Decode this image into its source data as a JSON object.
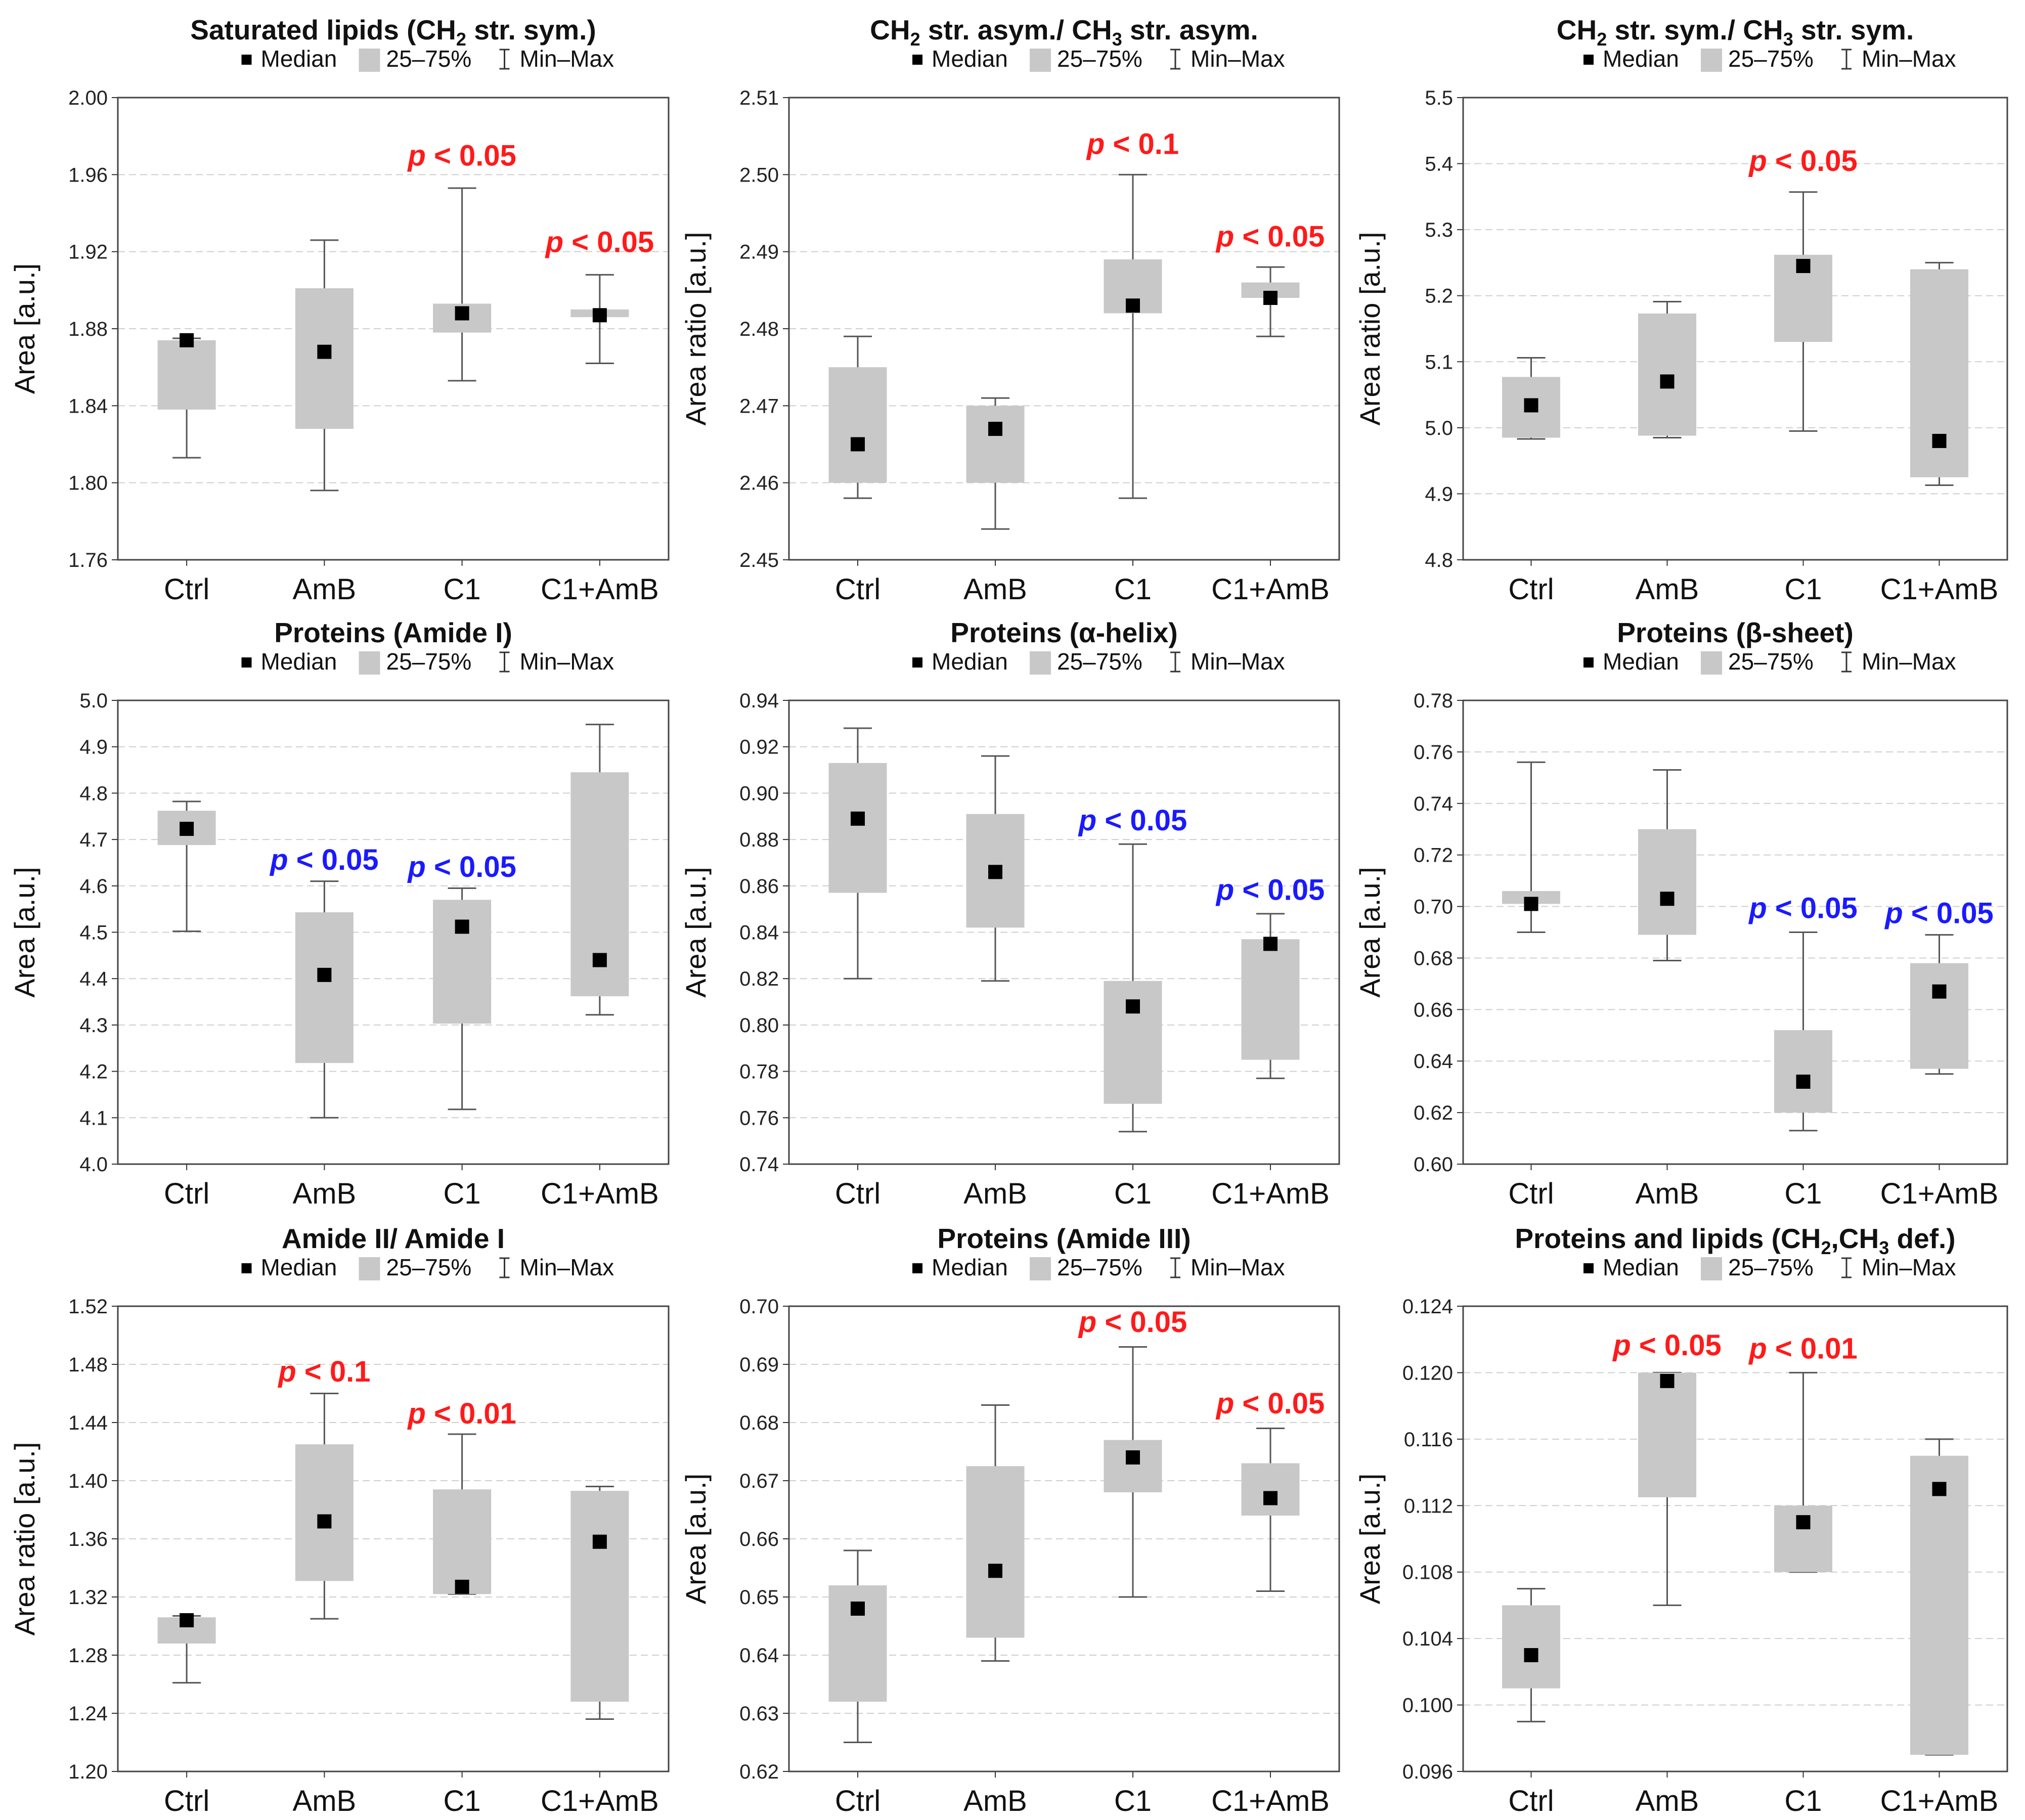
{
  "legend": {
    "median": "Median",
    "iqr": "25–75%",
    "range": "Min–Max"
  },
  "colors": {
    "box": "#c8c8c8",
    "median": "#000000",
    "whisker": "#555555",
    "grid": "#cfcfcf",
    "red": "#ff1a1a",
    "blue": "#1a1aff"
  },
  "chart_data": [
    {
      "type": "box",
      "title": "Saturated lipids (CH2 str. sym.)",
      "title_parts": [
        "Saturated lipids (CH",
        "2",
        " str. sym.)"
      ],
      "ylabel": "Area [a.u.]",
      "ylim": [
        1.76,
        2.0
      ],
      "yticks": [
        "1.76",
        "1.80",
        "1.84",
        "1.88",
        "1.92",
        "1.96",
        "2.00"
      ],
      "categories": [
        "Ctrl",
        "AmB",
        "C1",
        "C1+AmB"
      ],
      "min": [
        1.813,
        1.796,
        1.853,
        1.862
      ],
      "q1": [
        1.838,
        1.828,
        1.878,
        1.886
      ],
      "median": [
        1.874,
        1.868,
        1.888,
        1.887
      ],
      "q3": [
        1.874,
        1.901,
        1.893,
        1.89
      ],
      "max": [
        1.875,
        1.926,
        1.953,
        1.908
      ],
      "annotations": [
        {
          "i": 2,
          "text": "< 0.05",
          "color": "red",
          "value": 1.96
        },
        {
          "i": 3,
          "text": "< 0.05",
          "color": "red",
          "value": 1.915
        }
      ]
    },
    {
      "type": "box",
      "title": "CH2 str. asym./ CH3 str. asym.",
      "title_parts": [
        "CH",
        "2",
        " str. asym./ CH",
        "3",
        " str. asym."
      ],
      "ylabel": "Area ratio [a.u.]",
      "ylim": [
        2.45,
        2.51
      ],
      "yticks": [
        "2.45",
        "2.46",
        "2.47",
        "2.48",
        "2.49",
        "2.50",
        "2.51"
      ],
      "categories": [
        "Ctrl",
        "AmB",
        "C1",
        "C1+AmB"
      ],
      "min": [
        2.458,
        2.454,
        2.458,
        2.479
      ],
      "q1": [
        2.46,
        2.46,
        2.482,
        2.484
      ],
      "median": [
        2.465,
        2.467,
        2.483,
        2.484
      ],
      "q3": [
        2.475,
        2.47,
        2.489,
        2.486
      ],
      "max": [
        2.479,
        2.471,
        2.5,
        2.488
      ],
      "annotations": [
        {
          "i": 2,
          "text": "< 0.1",
          "color": "red",
          "value": 2.5015
        },
        {
          "i": 3,
          "text": "< 0.05",
          "color": "red",
          "value": 2.4895
        }
      ]
    },
    {
      "type": "box",
      "title": "CH2 str. sym./ CH3 str. sym.",
      "title_parts": [
        "CH",
        "2",
        " str. sym./ CH",
        "3",
        " str. sym."
      ],
      "ylabel": "Area ratio [a.u.]",
      "ylim": [
        4.8,
        5.5
      ],
      "yticks": [
        "4.8",
        "4.9",
        "5.0",
        "5.1",
        "5.2",
        "5.3",
        "5.4",
        "5.5"
      ],
      "categories": [
        "Ctrl",
        "AmB",
        "C1",
        "C1+AmB"
      ],
      "min": [
        4.983,
        4.985,
        4.995,
        4.913
      ],
      "q1": [
        4.985,
        4.988,
        5.13,
        4.925
      ],
      "median": [
        5.034,
        5.07,
        5.245,
        4.98
      ],
      "q3": [
        5.077,
        5.173,
        5.262,
        5.24
      ],
      "max": [
        5.106,
        5.191,
        5.357,
        5.25
      ],
      "annotations": [
        {
          "i": 2,
          "text": "< 0.05",
          "color": "red",
          "value": 5.375
        }
      ]
    },
    {
      "type": "box",
      "title": "Proteins (Amide I)",
      "title_parts": [
        "Proteins (Amide I)"
      ],
      "ylabel": "Area [a.u.]",
      "ylim": [
        4.0,
        5.0
      ],
      "yticks": [
        "4.0",
        "4.1",
        "4.2",
        "4.3",
        "4.4",
        "4.5",
        "4.6",
        "4.7",
        "4.8",
        "4.9",
        "5.0"
      ],
      "categories": [
        "Ctrl",
        "AmB",
        "C1",
        "C1+AmB"
      ],
      "min": [
        4.502,
        4.1,
        4.118,
        4.322
      ],
      "q1": [
        4.688,
        4.218,
        4.303,
        4.362
      ],
      "median": [
        4.723,
        4.408,
        4.512,
        4.44
      ],
      "q3": [
        4.762,
        4.543,
        4.57,
        4.845
      ],
      "max": [
        4.782,
        4.61,
        4.595,
        4.948
      ],
      "annotations": [
        {
          "i": 1,
          "text": "< 0.05",
          "color": "blue",
          "value": 4.615
        },
        {
          "i": 2,
          "text": "< 0.05",
          "color": "blue",
          "value": 4.6
        }
      ]
    },
    {
      "type": "box",
      "title": "Proteins (α-helix)",
      "title_parts": [
        "Proteins (α-helix)"
      ],
      "ylabel": "Area [a.u.]",
      "ylim": [
        0.74,
        0.94
      ],
      "yticks": [
        "0.74",
        "0.76",
        "0.78",
        "0.80",
        "0.82",
        "0.84",
        "0.86",
        "0.88",
        "0.90",
        "0.92",
        "0.94"
      ],
      "categories": [
        "Ctrl",
        "AmB",
        "C1",
        "C1+AmB"
      ],
      "min": [
        0.82,
        0.819,
        0.754,
        0.777
      ],
      "q1": [
        0.857,
        0.842,
        0.766,
        0.785
      ],
      "median": [
        0.889,
        0.866,
        0.808,
        0.835
      ],
      "q3": [
        0.913,
        0.891,
        0.819,
        0.837
      ],
      "max": [
        0.928,
        0.916,
        0.878,
        0.848
      ],
      "annotations": [
        {
          "i": 2,
          "text": "< 0.05",
          "color": "blue",
          "value": 0.88
        },
        {
          "i": 3,
          "text": "< 0.05",
          "color": "blue",
          "value": 0.85
        }
      ]
    },
    {
      "type": "box",
      "title": "Proteins (β-sheet)",
      "title_parts": [
        "Proteins (β-sheet)"
      ],
      "ylabel": "Area [a.u.]",
      "ylim": [
        0.6,
        0.78
      ],
      "yticks": [
        "0.60",
        "0.62",
        "0.64",
        "0.66",
        "0.68",
        "0.70",
        "0.72",
        "0.74",
        "0.76",
        "0.78"
      ],
      "categories": [
        "Ctrl",
        "AmB",
        "C1",
        "C1+AmB"
      ],
      "min": [
        0.69,
        0.679,
        0.613,
        0.635
      ],
      "q1": [
        0.701,
        0.689,
        0.62,
        0.637
      ],
      "median": [
        0.701,
        0.703,
        0.632,
        0.667
      ],
      "q3": [
        0.706,
        0.73,
        0.652,
        0.678
      ],
      "max": [
        0.756,
        0.753,
        0.69,
        0.689
      ],
      "annotations": [
        {
          "i": 2,
          "text": "< 0.05",
          "color": "blue",
          "value": 0.692
        },
        {
          "i": 3,
          "text": "< 0.05",
          "color": "blue",
          "value": 0.69
        }
      ]
    },
    {
      "type": "box",
      "title": "Amide II/ Amide I",
      "title_parts": [
        "Amide II/ Amide I"
      ],
      "ylabel": "Area ratio [a.u.]",
      "ylim": [
        1.2,
        1.52
      ],
      "yticks": [
        "1.20",
        "1.24",
        "1.28",
        "1.32",
        "1.36",
        "1.40",
        "1.44",
        "1.48",
        "1.52"
      ],
      "categories": [
        "Ctrl",
        "AmB",
        "C1",
        "C1+AmB"
      ],
      "min": [
        1.261,
        1.305,
        1.322,
        1.236
      ],
      "q1": [
        1.288,
        1.331,
        1.322,
        1.248
      ],
      "median": [
        1.304,
        1.372,
        1.327,
        1.358
      ],
      "q3": [
        1.306,
        1.425,
        1.394,
        1.393
      ],
      "max": [
        1.307,
        1.46,
        1.432,
        1.396
      ],
      "annotations": [
        {
          "i": 1,
          "text": "< 0.1",
          "color": "red",
          "value": 1.462
        },
        {
          "i": 2,
          "text": "< 0.01",
          "color": "red",
          "value": 1.433
        }
      ]
    },
    {
      "type": "box",
      "title": "Proteins (Amide III)",
      "title_parts": [
        "Proteins (Amide III)"
      ],
      "ylabel": "Area [a.u.]",
      "ylim": [
        0.62,
        0.7
      ],
      "yticks": [
        "0.62",
        "0.63",
        "0.64",
        "0.65",
        "0.66",
        "0.67",
        "0.68",
        "0.69",
        "0.70"
      ],
      "categories": [
        "Ctrl",
        "AmB",
        "C1",
        "C1+AmB"
      ],
      "min": [
        0.625,
        0.639,
        0.65,
        0.651
      ],
      "q1": [
        0.632,
        0.643,
        0.668,
        0.664
      ],
      "median": [
        0.648,
        0.6545,
        0.674,
        0.667
      ],
      "q3": [
        0.652,
        0.6725,
        0.677,
        0.673
      ],
      "max": [
        0.658,
        0.683,
        0.693,
        0.679
      ],
      "annotations": [
        {
          "i": 2,
          "text": "< 0.05",
          "color": "red",
          "value": 0.694
        },
        {
          "i": 3,
          "text": "< 0.05",
          "color": "red",
          "value": 0.68
        }
      ]
    },
    {
      "type": "box",
      "title": "Proteins and lipids (CH2,CH3 def.)",
      "title_parts": [
        "Proteins and lipids (CH",
        "2",
        ",CH",
        "3",
        " def.)"
      ],
      "ylabel": "Area [a.u.]",
      "ylim": [
        0.096,
        0.124
      ],
      "yticks": [
        "0.096",
        "0.100",
        "0.104",
        "0.108",
        "0.112",
        "0.116",
        "0.120",
        "0.124"
      ],
      "categories": [
        "Ctrl",
        "AmB",
        "C1",
        "C1+AmB"
      ],
      "min": [
        0.099,
        0.106,
        0.108,
        0.097
      ],
      "q1": [
        0.101,
        0.1125,
        0.108,
        0.097
      ],
      "median": [
        0.103,
        0.1195,
        0.111,
        0.113
      ],
      "q3": [
        0.106,
        0.12,
        0.112,
        0.115
      ],
      "max": [
        0.107,
        0.12,
        0.12,
        0.116
      ],
      "annotations": [
        {
          "i": 1,
          "text": "< 0.05",
          "color": "red",
          "value": 0.1205
        },
        {
          "i": 2,
          "text": "< 0.01",
          "color": "red",
          "value": 0.1203
        }
      ]
    }
  ]
}
